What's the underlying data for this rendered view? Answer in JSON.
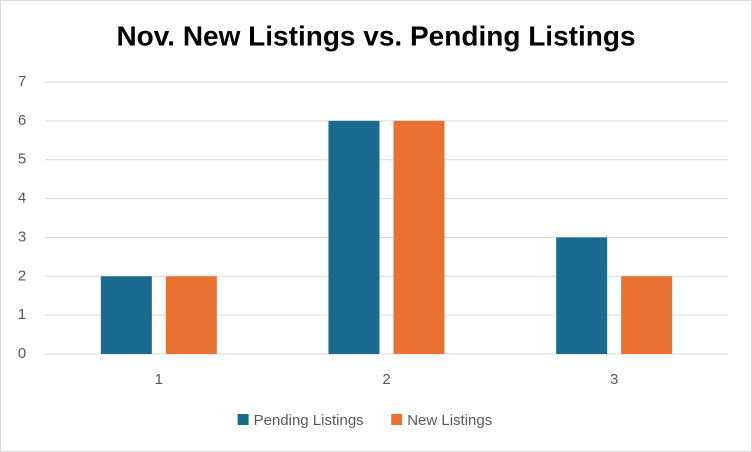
{
  "chart_data": {
    "type": "bar",
    "title": "Nov. New Listings vs. Pending Listings",
    "categories": [
      "1",
      "2",
      "3"
    ],
    "series": [
      {
        "name": "Pending Listings",
        "color": "#196b8f",
        "values": [
          2,
          6,
          3
        ]
      },
      {
        "name": "New Listings",
        "color": "#e97132",
        "values": [
          2,
          6,
          2
        ]
      }
    ],
    "ylim": [
      0,
      7
    ],
    "yticks": [
      0,
      1,
      2,
      3,
      4,
      5,
      6,
      7
    ],
    "grid": true,
    "legend": "bottom"
  }
}
